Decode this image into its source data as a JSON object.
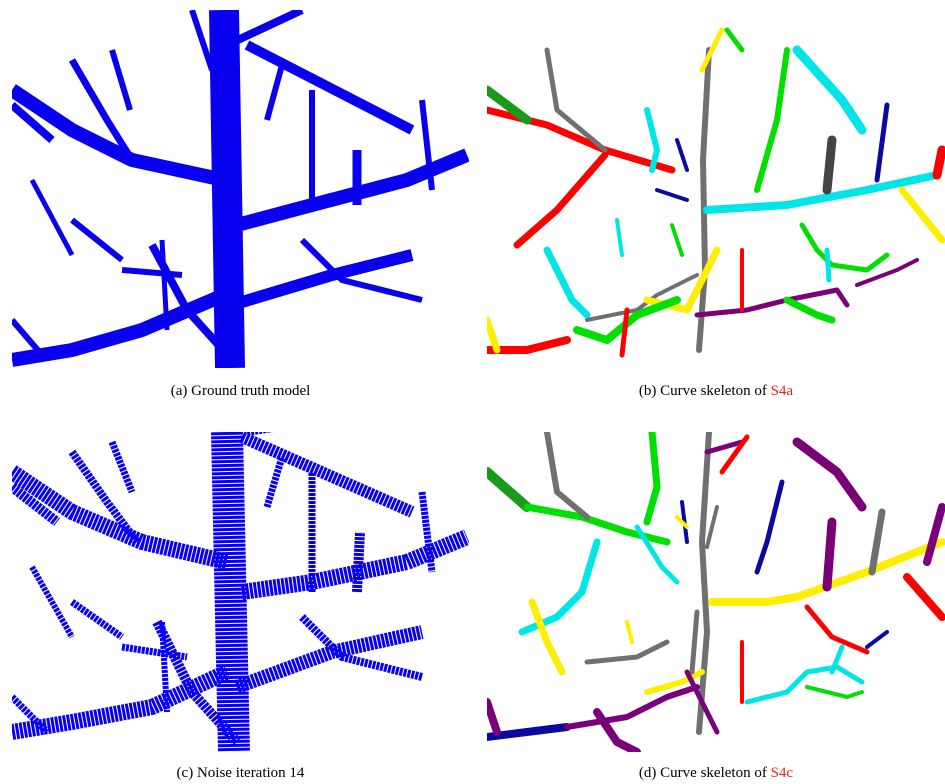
{
  "figure": {
    "panels": [
      {
        "id": "a",
        "caption_prefix": "(a) ",
        "caption_text": "Ground truth model",
        "caption_ref": ""
      },
      {
        "id": "b",
        "caption_prefix": "(b) ",
        "caption_text": "Curve skeleton of ",
        "caption_ref": "S4a"
      },
      {
        "id": "c",
        "caption_prefix": "(c) ",
        "caption_text": "Noise iteration 14",
        "caption_ref": ""
      },
      {
        "id": "d",
        "caption_prefix": "(d) ",
        "caption_text": "Curve skeleton of ",
        "caption_ref": "S4c"
      }
    ]
  },
  "colors": {
    "voxel_blue": "#0a00f0",
    "reference_red": "#e8231c",
    "skeleton_palette": [
      "#ff0000",
      "#00e000",
      "#00e5e5",
      "#ffee00",
      "#7a007a",
      "#0a0aa0",
      "#707070",
      "#1a9a1a"
    ]
  }
}
